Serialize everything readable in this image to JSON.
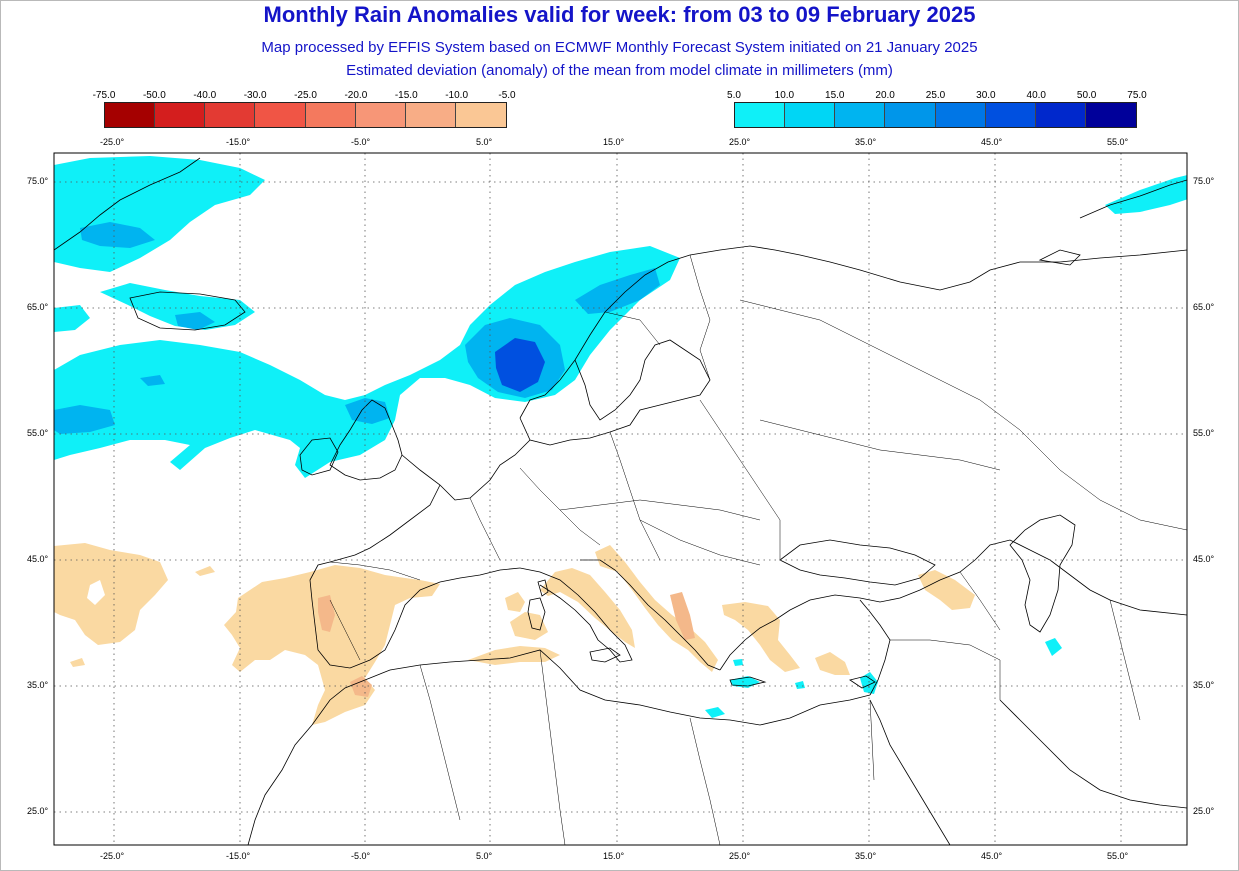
{
  "header": {
    "title": "Monthly Rain Anomalies valid for week: from 03 to 09 February 2025",
    "subtitle1": "Map processed by EFFIS System based on ECMWF Monthly Forecast System initiated on 21 January 2025",
    "subtitle2": "Estimated deviation (anomaly) of the mean from model climate in millimeters (mm)"
  },
  "legend_dry": {
    "labels": [
      "-75.0",
      "-50.0",
      "-40.0",
      "-30.0",
      "-25.0",
      "-20.0",
      "-15.0",
      "-10.0",
      "-5.0"
    ],
    "colors": [
      "#a50000",
      "#d41e1e",
      "#e33a33",
      "#f05545",
      "#f4795e",
      "#f79677",
      "#f8ad86",
      "#fac795"
    ]
  },
  "legend_wet": {
    "labels": [
      "5.0",
      "10.0",
      "15.0",
      "20.0",
      "25.0",
      "30.0",
      "40.0",
      "50.0",
      "75.0"
    ],
    "colors": [
      "#0ff0f8",
      "#00d6f5",
      "#00b4f0",
      "#0096ea",
      "#0076e6",
      "#0050e0",
      "#0028cc",
      "#00009a"
    ]
  },
  "axes": {
    "lon_labels": [
      "-25.0°",
      "-15.0°",
      "-5.0°",
      "5.0°",
      "15.0°",
      "25.0°",
      "35.0°",
      "45.0°",
      "55.0°"
    ],
    "lat_labels": [
      "75.0°",
      "65.0°",
      "55.0°",
      "45.0°",
      "35.0°",
      "25.0°"
    ]
  },
  "colors": {
    "title_blue": "#1414c8",
    "wet_light": "#0ff0f8",
    "wet_mid": "#00b4f0",
    "wet_dark": "#0050e0",
    "dry_light": "#fad9a2",
    "dry_mid": "#f4b88a"
  }
}
